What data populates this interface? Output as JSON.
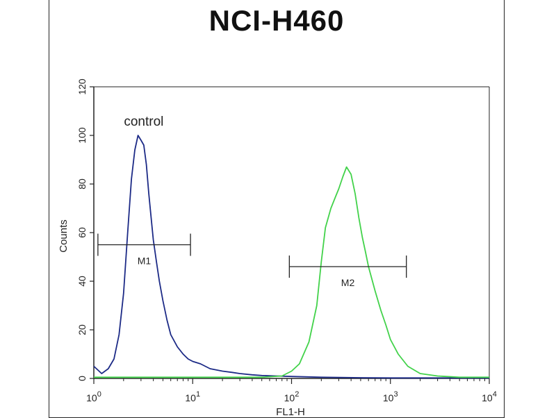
{
  "chart_data": {
    "type": "line",
    "title": "NCI-H460",
    "xlabel": "FL1-H",
    "ylabel": "Counts",
    "x_scale": "log",
    "xlim": [
      1,
      10000
    ],
    "ylim": [
      0,
      120
    ],
    "x_ticks": [
      {
        "value": 1,
        "base": "10",
        "exp": "0"
      },
      {
        "value": 10,
        "base": "10",
        "exp": "1"
      },
      {
        "value": 100,
        "base": "10",
        "exp": "2"
      },
      {
        "value": 1000,
        "base": "10",
        "exp": "3"
      },
      {
        "value": 10000,
        "base": "10",
        "exp": "4"
      }
    ],
    "y_ticks": [
      0,
      20,
      40,
      60,
      80,
      100,
      120
    ],
    "annotations": [
      {
        "text": "control",
        "x": 3.2,
        "y": 104
      }
    ],
    "series": [
      {
        "color": "#1c2a86",
        "x": [
          1.0,
          1.2,
          1.4,
          1.6,
          1.8,
          2.0,
          2.2,
          2.4,
          2.6,
          2.8,
          3.0,
          3.2,
          3.4,
          3.6,
          3.8,
          4.0,
          4.3,
          4.6,
          5.0,
          5.5,
          6.0,
          7.0,
          8.0,
          9.0,
          10,
          12,
          15,
          20,
          25,
          30,
          40,
          50,
          70,
          100,
          200,
          500,
          1000,
          10000
        ],
        "y": [
          5,
          2,
          4,
          8,
          18,
          35,
          60,
          82,
          94,
          100,
          98,
          96,
          88,
          76,
          66,
          57,
          48,
          40,
          32,
          24,
          18,
          13,
          10,
          8,
          7,
          6,
          4,
          3,
          2.5,
          2,
          1.5,
          1.2,
          1,
          0.8,
          0.5,
          0.3,
          0.2,
          0.2
        ]
      },
      {
        "color": "#42d24a",
        "x": [
          1,
          10,
          50,
          80,
          100,
          120,
          150,
          180,
          200,
          220,
          250,
          280,
          300,
          330,
          360,
          400,
          440,
          480,
          520,
          560,
          600,
          700,
          800,
          900,
          1000,
          1200,
          1500,
          2000,
          3000,
          5000,
          10000
        ],
        "y": [
          0.5,
          0.5,
          0.5,
          1,
          3,
          6,
          15,
          30,
          48,
          62,
          70,
          75,
          78,
          83,
          87,
          84,
          76,
          66,
          58,
          52,
          46,
          36,
          28,
          22,
          16,
          10,
          5,
          2,
          1,
          0.5,
          0.5
        ]
      }
    ],
    "markers": [
      {
        "label": "M1",
        "x_start": 1.1,
        "x_end": 9.5,
        "y": 55
      },
      {
        "label": "M2",
        "x_start": 95,
        "x_end": 1450,
        "y": 46
      }
    ]
  }
}
